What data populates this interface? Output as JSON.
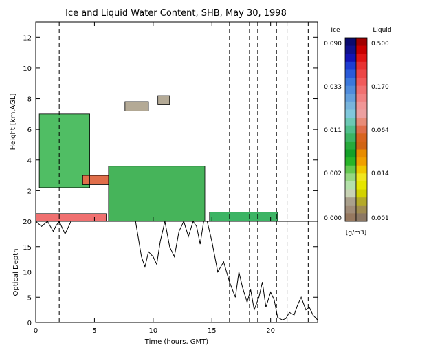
{
  "chart_data": [
    {
      "type": "heatmap",
      "title": "Ice and Liquid Water Content, SHB, May 30, 1998",
      "xlabel": "",
      "ylabel": "Height [km,AGL]",
      "xlim": [
        0,
        24
      ],
      "ylim": [
        0,
        13
      ],
      "xticks": [
        "0",
        "5",
        "10",
        "15",
        "20"
      ],
      "yticks": [
        "2",
        "4",
        "6",
        "8",
        "10",
        "12"
      ],
      "dashed_times": [
        2.0,
        3.6,
        16.5,
        18.2,
        18.9,
        20.5,
        21.4,
        23.2
      ],
      "regions": [
        {
          "phase": "liquid",
          "x": [
            0.0,
            6.0
          ],
          "y": [
            0.0,
            0.5
          ],
          "level": "0.064-0.170"
        },
        {
          "phase": "ice",
          "x": [
            0.3,
            4.6
          ],
          "y": [
            2.2,
            7.0
          ],
          "level": "0.002-0.011"
        },
        {
          "phase": "ice",
          "x": [
            6.2,
            14.4
          ],
          "y": [
            0.0,
            3.6
          ],
          "level": "0.002-0.033"
        },
        {
          "phase": "ice",
          "x": [
            14.8,
            20.6
          ],
          "y": [
            0.0,
            0.6
          ],
          "level": "0.002"
        },
        {
          "phase": "ice",
          "x": [
            10.4,
            11.4
          ],
          "y": [
            7.6,
            8.2
          ],
          "level": "0.000"
        },
        {
          "phase": "ice",
          "x": [
            7.6,
            9.6
          ],
          "y": [
            7.2,
            7.8
          ],
          "level": "0.000"
        },
        {
          "phase": "liquid",
          "x": [
            4.0,
            6.2
          ],
          "y": [
            2.4,
            3.0
          ],
          "level": "0.064"
        }
      ]
    },
    {
      "type": "line",
      "title": "",
      "xlabel": "Time (hours, GMT)",
      "ylabel": "Optical Depth",
      "xlim": [
        0,
        24
      ],
      "ylim": [
        0,
        20
      ],
      "xticks": [
        "0",
        "5",
        "10",
        "15",
        "20"
      ],
      "yticks": [
        "0",
        "5",
        "10",
        "15",
        "20"
      ],
      "series": [
        {
          "x": [
            0.0,
            0.5,
            1.0,
            1.5,
            1.7,
            2.0,
            2.5,
            3.0,
            3.5,
            4.0,
            5.0,
            6.0,
            7.0,
            8.0,
            8.5,
            9.0,
            9.3,
            9.6,
            10.0,
            10.3,
            10.6,
            11.0,
            11.4,
            11.8,
            12.2,
            12.6,
            13.0,
            13.4,
            13.7,
            14.0,
            14.3,
            14.6,
            15.0,
            15.5,
            16.0,
            16.5,
            17.0,
            17.3,
            17.6,
            18.0,
            18.3,
            18.6,
            19.0,
            19.3,
            19.6,
            20.0,
            20.3,
            20.6,
            21.0,
            21.3,
            21.6,
            22.0,
            22.3,
            22.6,
            23.0,
            23.3,
            23.6,
            24.0
          ],
          "y": [
            20.0,
            19.0,
            20.0,
            18.0,
            19.0,
            20.0,
            17.5,
            20.0,
            20.0,
            20.0,
            20.0,
            20.0,
            20.0,
            20.0,
            20.0,
            13.0,
            11.0,
            14.0,
            13.0,
            11.5,
            16.0,
            20.0,
            15.0,
            13.0,
            18.0,
            20.0,
            17.0,
            20.0,
            19.0,
            15.5,
            20.0,
            20.0,
            16.0,
            10.0,
            12.0,
            8.0,
            5.0,
            10.0,
            7.0,
            4.0,
            6.5,
            2.5,
            5.0,
            8.0,
            3.0,
            6.0,
            4.5,
            1.0,
            0.5,
            0.8,
            2.0,
            1.5,
            3.5,
            5.0,
            2.5,
            3.0,
            1.5,
            0.5
          ]
        }
      ]
    }
  ],
  "colorbar": {
    "ice_label": "Ice",
    "liquid_label": "Liquid",
    "unit": "[g/m3]",
    "ice_ticks": [
      "0.090",
      "0.033",
      "0.011",
      "0.002",
      "0.000"
    ],
    "liquid_ticks": [
      "0.500",
      "0.170",
      "0.064",
      "0.014",
      "0.001"
    ],
    "ice_colors": [
      "#0a0a6e",
      "#10108c",
      "#1414b4",
      "#1e3cd2",
      "#2a5ad8",
      "#3c78dc",
      "#508cdc",
      "#64a0dc",
      "#78b4dc",
      "#80c8dc",
      "#6cc8b4",
      "#50be8c",
      "#3cb464",
      "#28aa3c",
      "#14a028",
      "#28b428",
      "#64c850",
      "#96d782",
      "#b4e1aa",
      "#c8d2b4",
      "#aaa08c",
      "#a08c78",
      "#96785f"
    ],
    "liquid_colors": [
      "#a00000",
      "#c80000",
      "#e01414",
      "#e83232",
      "#ec4646",
      "#f05a5a",
      "#f07070",
      "#f08282",
      "#f09696",
      "#eca0a0",
      "#e88c78",
      "#e06e4a",
      "#d8641e",
      "#d06414",
      "#e88c00",
      "#f0a000",
      "#f0c800",
      "#f0e61e",
      "#e6e600",
      "#d2d200",
      "#b4aa28",
      "#a08c50",
      "#8c7864"
    ]
  }
}
